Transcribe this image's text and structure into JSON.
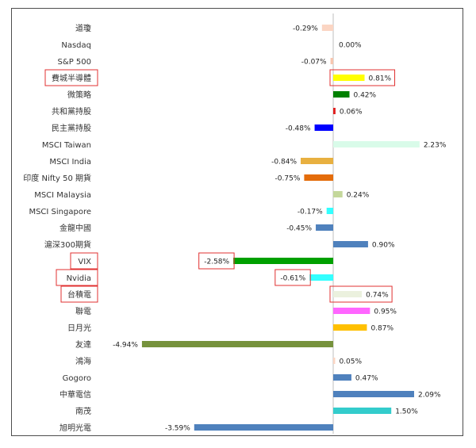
{
  "chart_data": {
    "type": "bar",
    "orientation": "horizontal",
    "unit": "%",
    "categories": [
      "道瓊",
      "Nasdaq",
      "S&P 500",
      "費城半導體",
      "微策略",
      "共和黨持股",
      "民主黨持股",
      "MSCI Taiwan",
      "MSCI India",
      "印度 Nifty 50 期貨",
      "MSCI Malaysia",
      "MSCI Singapore",
      "金龍中國",
      "滬深300期貨",
      "VIX",
      "Nvidia",
      "台積電",
      "聯電",
      "日月光",
      "友達",
      "鴻海",
      "Gogoro",
      "中華電信",
      "南茂",
      "旭明光電"
    ],
    "values": [
      -0.29,
      0.0,
      -0.07,
      0.81,
      0.42,
      0.06,
      -0.48,
      2.23,
      -0.84,
      -0.75,
      0.24,
      -0.17,
      -0.45,
      0.9,
      -2.58,
      -0.61,
      0.74,
      0.95,
      0.87,
      -4.94,
      0.05,
      0.47,
      2.09,
      1.5,
      -3.59
    ],
    "value_labels": [
      "-0.29%",
      "0.00%",
      "-0.07%",
      "0.81%",
      "0.42%",
      "0.06%",
      "-0.48%",
      "2.23%",
      "-0.84%",
      "-0.75%",
      "0.24%",
      "-0.17%",
      "-0.45%",
      "0.90%",
      "-2.58%",
      "-0.61%",
      "0.74%",
      "0.95%",
      "0.87%",
      "-4.94%",
      "0.05%",
      "0.47%",
      "2.09%",
      "1.50%",
      "-3.59%"
    ],
    "colors": [
      "#fbd5c3",
      "#cccccc",
      "#f7c6b0",
      "#ffff00",
      "#008000",
      "#e02020",
      "#0000ff",
      "#d9fbe9",
      "#e8b040",
      "#e46c0a",
      "#c4d79b",
      "#33ffff",
      "#4f81bd",
      "#4f81bd",
      "#00a000",
      "#33ffff",
      "#ebf1de",
      "#ff66ff",
      "#ffc000",
      "#76923c",
      "#fbd5c3",
      "#4f81bd",
      "#4f81bd",
      "#33cccc",
      "#4f81bd"
    ],
    "highlighted": [
      3,
      14,
      15,
      16
    ],
    "highlight_color": "#e03030",
    "xlim": [
      -5.2,
      2.35
    ],
    "grid": false,
    "legend": "none"
  }
}
